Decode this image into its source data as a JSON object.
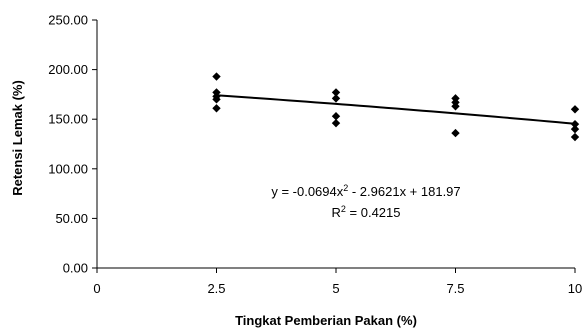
{
  "chart_data": {
    "type": "scatter",
    "title": "",
    "xlabel": "Tingkat Pemberian Pakan (%)",
    "ylabel": "Retensi Lemak (%)",
    "xlim": [
      0,
      10
    ],
    "ylim": [
      0,
      250
    ],
    "x_ticks": [
      0,
      2.5,
      5,
      7.5,
      10
    ],
    "x_tick_labels": [
      "0",
      "2.5",
      "5",
      "7.5",
      "10"
    ],
    "y_ticks": [
      0,
      50,
      100,
      150,
      200,
      250
    ],
    "y_tick_labels": [
      "0.00",
      "50.00",
      "100.00",
      "150.00",
      "200.00",
      "250.00"
    ],
    "grid": false,
    "series": [
      {
        "marker": "diamond",
        "color": "#000000",
        "points": [
          {
            "x": 2.5,
            "y": 193
          },
          {
            "x": 2.5,
            "y": 177
          },
          {
            "x": 2.5,
            "y": 173
          },
          {
            "x": 2.5,
            "y": 170
          },
          {
            "x": 2.5,
            "y": 161
          },
          {
            "x": 5,
            "y": 177
          },
          {
            "x": 5,
            "y": 171
          },
          {
            "x": 5,
            "y": 153
          },
          {
            "x": 5,
            "y": 146
          },
          {
            "x": 7.5,
            "y": 171
          },
          {
            "x": 7.5,
            "y": 167
          },
          {
            "x": 7.5,
            "y": 163
          },
          {
            "x": 7.5,
            "y": 136
          },
          {
            "x": 10,
            "y": 160
          },
          {
            "x": 10,
            "y": 145
          },
          {
            "x": 10,
            "y": 140
          },
          {
            "x": 10,
            "y": 132
          }
        ]
      }
    ],
    "trendline": {
      "type": "polynomial",
      "coefficients": {
        "a": -0.0694,
        "b": -2.9621,
        "c": 181.97
      },
      "x_range": [
        2.5,
        10
      ],
      "color": "#000000"
    },
    "annotations": {
      "equation": "y = -0.0694x² - 2.9621x + 181.97",
      "equation_parts": {
        "prefix": "y = -0.0694x",
        "sup": "2",
        "suffix": " - 2.9621x + 181.97"
      },
      "r2": {
        "prefix": "R",
        "sup": "2",
        "suffix": " = 0.4215"
      }
    }
  }
}
